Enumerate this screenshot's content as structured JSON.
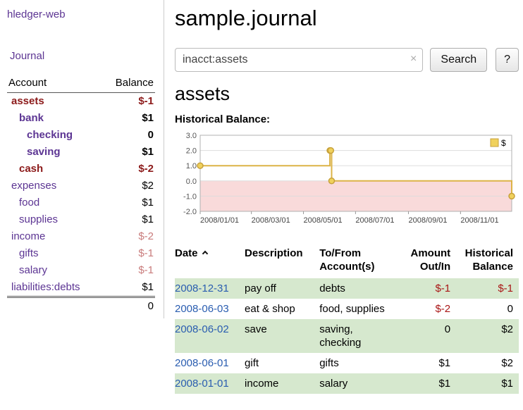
{
  "sidebar": {
    "app_title": "hledger-web",
    "journal_link": "Journal",
    "accounts": {
      "account_header": "Account",
      "balance_header": "Balance",
      "rows": [
        {
          "name": "assets",
          "balance": "$-1",
          "indent": 0,
          "bold": true,
          "name_color": "maroon",
          "balance_color": "maroon"
        },
        {
          "name": "bank",
          "balance": "$1",
          "indent": 1,
          "bold": true
        },
        {
          "name": "checking",
          "balance": "0",
          "indent": 2,
          "bold": true
        },
        {
          "name": "saving",
          "balance": "$1",
          "indent": 2,
          "bold": true
        },
        {
          "name": "cash",
          "balance": "$-2",
          "indent": 1,
          "bold": true,
          "name_color": "maroon",
          "balance_color": "maroon"
        },
        {
          "name": "expenses",
          "balance": "$2",
          "indent": 0
        },
        {
          "name": "food",
          "balance": "$1",
          "indent": 1
        },
        {
          "name": "supplies",
          "balance": "$1",
          "indent": 1
        },
        {
          "name": "income",
          "balance": "$-2",
          "indent": 0,
          "balance_color": "pink"
        },
        {
          "name": "gifts",
          "balance": "$-1",
          "indent": 1,
          "balance_color": "pink"
        },
        {
          "name": "salary",
          "balance": "$-1",
          "indent": 1,
          "balance_color": "pink"
        },
        {
          "name": "liabilities:debts",
          "balance": "$1",
          "indent": 0
        }
      ],
      "total": "0"
    }
  },
  "main": {
    "title": "sample.journal",
    "search": {
      "value": "inacct:assets",
      "clear_icon": "×",
      "button_label": "Search",
      "help_label": "?"
    },
    "account_heading": "assets",
    "chart_label": "Historical Balance:"
  },
  "chart_data": {
    "type": "line",
    "subtype": "step-after",
    "title": "Historical Balance",
    "series": [
      {
        "name": "$",
        "points": [
          [
            "2008-01-01",
            1
          ],
          [
            "2008-06-01",
            2
          ],
          [
            "2008-06-02",
            2
          ],
          [
            "2008-06-03",
            0
          ],
          [
            "2008-12-31",
            -1
          ]
        ]
      }
    ],
    "x_range": [
      "2008-01-01",
      "2008-12-31"
    ],
    "ylim": [
      -2,
      3
    ],
    "yticks": [
      3.0,
      2.0,
      1.0,
      0.0,
      -1.0,
      -2.0
    ],
    "xticks": [
      {
        "date": "2008-01-01",
        "label": "2008/01/01"
      },
      {
        "date": "2008-03-01",
        "label": "2008/03/01"
      },
      {
        "date": "2008-05-01",
        "label": "2008/05/01"
      },
      {
        "date": "2008-07-01",
        "label": "2008/07/01"
      },
      {
        "date": "2008-09-01",
        "label": "2008/09/01"
      },
      {
        "date": "2008-11-01",
        "label": "2008/11/01"
      }
    ],
    "grid": true,
    "legend_position": "top-right",
    "line_color": "#dcb347",
    "marker_fill": "#f0d15c",
    "marker_stroke": "#c7a13b",
    "negative_region_color": "#f9dada"
  },
  "register": {
    "headers": {
      "date": "Date",
      "description": "Description",
      "account_line1": "To/From",
      "account_line2": "Account(s)",
      "amount_line1": "Amount",
      "amount_line2": "Out/In",
      "balance_line1": "Historical",
      "balance_line2": "Balance"
    },
    "rows": [
      {
        "date": "2008-12-31",
        "description": "pay off",
        "accounts": "debts",
        "amount": "$-1",
        "balance": "$-1",
        "shade": true
      },
      {
        "date": "2008-06-03",
        "description": "eat & shop",
        "accounts": "food, supplies",
        "amount": "$-2",
        "balance": "0",
        "shade": false
      },
      {
        "date": "2008-06-02",
        "description": "save",
        "accounts": "saving, checking",
        "amount": "0",
        "balance": "$2",
        "shade": true
      },
      {
        "date": "2008-06-01",
        "description": "gift",
        "accounts": "gifts",
        "amount": "$1",
        "balance": "$2",
        "shade": false
      },
      {
        "date": "2008-01-01",
        "description": "income",
        "accounts": "salary",
        "amount": "$1",
        "balance": "$1",
        "shade": true
      }
    ]
  }
}
